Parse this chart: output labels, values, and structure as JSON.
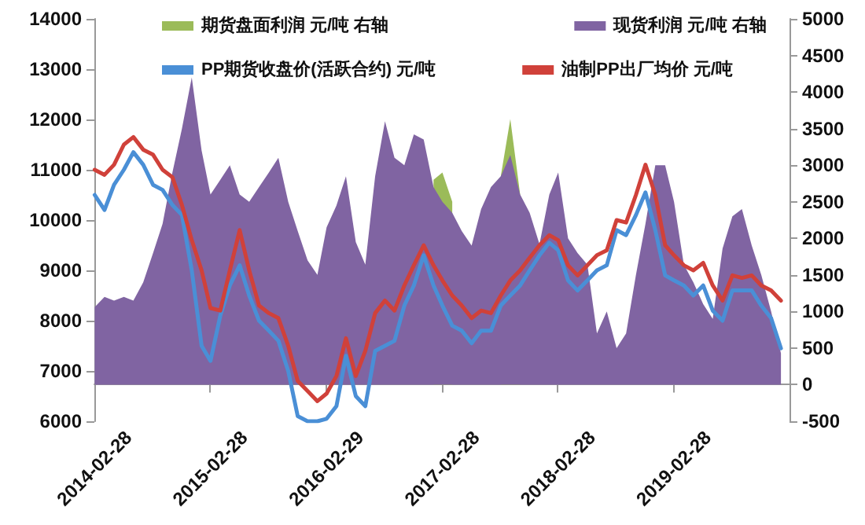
{
  "chart_data": {
    "type": "area",
    "x": [
      "2014-03",
      "2014-04",
      "2014-05",
      "2014-06",
      "2014-07",
      "2014-08",
      "2014-09",
      "2014-10",
      "2014-11",
      "2014-12",
      "2015-01",
      "2015-02",
      "2015-03",
      "2015-04",
      "2015-05",
      "2015-06",
      "2015-07",
      "2015-08",
      "2015-09",
      "2015-10",
      "2015-11",
      "2015-12",
      "2016-01",
      "2016-02",
      "2016-03",
      "2016-04",
      "2016-05",
      "2016-06",
      "2016-07",
      "2016-08",
      "2016-09",
      "2016-10",
      "2016-11",
      "2016-12",
      "2017-01",
      "2017-02",
      "2017-03",
      "2017-04",
      "2017-05",
      "2017-06",
      "2017-07",
      "2017-08",
      "2017-09",
      "2017-10",
      "2017-11",
      "2017-12",
      "2018-01",
      "2018-02",
      "2018-03",
      "2018-04",
      "2018-05",
      "2018-06",
      "2018-07",
      "2018-08",
      "2018-09",
      "2018-10",
      "2018-11",
      "2018-12",
      "2019-01",
      "2019-02",
      "2019-03",
      "2019-04",
      "2019-05",
      "2019-06",
      "2019-07",
      "2019-08",
      "2019-09",
      "2019-10",
      "2019-11",
      "2019-12",
      "2020-01",
      "2020-02"
    ],
    "series": [
      {
        "name": "期货盘面利润 元/吨 右轴",
        "axis": "y2",
        "color": "#9bbb59",
        "values": [
          null,
          null,
          null,
          null,
          null,
          null,
          null,
          null,
          null,
          null,
          null,
          null,
          null,
          null,
          null,
          null,
          null,
          null,
          null,
          null,
          null,
          null,
          null,
          null,
          null,
          null,
          null,
          null,
          null,
          null,
          null,
          null,
          null,
          null,
          null,
          2800,
          2900,
          2500,
          null,
          null,
          null,
          null,
          2850,
          3630,
          2600,
          null,
          null,
          null,
          null,
          null,
          null,
          null,
          null,
          null,
          null,
          null,
          null,
          null,
          null,
          null,
          null,
          null,
          null,
          null,
          null,
          null,
          null,
          null,
          null,
          null,
          null,
          null
        ]
      },
      {
        "name": "现货利润 元/吨 右轴",
        "axis": "y2",
        "color": "#8064a2",
        "values": [
          1060,
          1200,
          1150,
          1200,
          1150,
          1400,
          1800,
          2200,
          2900,
          3500,
          4200,
          3200,
          2600,
          2800,
          3000,
          2600,
          2500,
          2700,
          2900,
          3100,
          2500,
          2100,
          1700,
          1500,
          2150,
          2450,
          2850,
          1950,
          1640,
          2850,
          3600,
          3100,
          3000,
          3420,
          3350,
          2700,
          2500,
          2350,
          2100,
          1900,
          2400,
          2700,
          2850,
          3140,
          2600,
          2350,
          1920,
          2600,
          2900,
          2000,
          1800,
          1640,
          700,
          1000,
          500,
          700,
          1500,
          2200,
          3000,
          3000,
          2500,
          1640,
          1400,
          1100,
          900,
          1860,
          2300,
          2400,
          1900,
          1500,
          1000,
          430
        ]
      },
      {
        "name": "PP期货收盘价(活跃合约) 元/吨",
        "type": "line",
        "color": "#4a8fd6",
        "values": [
          10500,
          10200,
          10700,
          11000,
          11350,
          11100,
          10700,
          10600,
          10300,
          10100,
          9000,
          7500,
          7200,
          8100,
          8700,
          9100,
          8500,
          8000,
          7800,
          7600,
          7000,
          6100,
          6000,
          6000,
          6050,
          6300,
          7300,
          6500,
          6300,
          7400,
          7500,
          7600,
          8300,
          8700,
          9300,
          8700,
          8300,
          7900,
          7800,
          7550,
          7800,
          7800,
          8300,
          8500,
          8700,
          9000,
          9300,
          9550,
          9400,
          8800,
          8600,
          8800,
          9000,
          9100,
          9800,
          9700,
          10100,
          10550,
          9800,
          8900,
          8800,
          8700,
          8500,
          8700,
          8200,
          8000,
          8600,
          8600,
          8600,
          8300,
          8050,
          7450
        ]
      },
      {
        "name": "油制PP出厂均价 元/吨",
        "type": "line",
        "color": "#d0413a",
        "values": [
          11000,
          10900,
          11100,
          11500,
          11650,
          11400,
          11300,
          11000,
          10850,
          10300,
          9600,
          9000,
          8250,
          8200,
          9000,
          9800,
          9000,
          8300,
          8150,
          8050,
          7500,
          6800,
          6600,
          6400,
          6550,
          6900,
          7650,
          6900,
          7400,
          8150,
          8400,
          8200,
          8700,
          9100,
          9500,
          9100,
          8800,
          8500,
          8300,
          8050,
          8200,
          8150,
          8500,
          8800,
          9000,
          9250,
          9500,
          9700,
          9600,
          9100,
          8900,
          9100,
          9300,
          9400,
          10000,
          9950,
          10500,
          11100,
          10500,
          9500,
          9300,
          9100,
          9000,
          9150,
          8700,
          8400,
          8900,
          8850,
          8900,
          8700,
          8600,
          8400
        ]
      }
    ],
    "xlim": [
      "2014-02-28",
      "2020-02-28"
    ],
    "xticks": [
      "2014-02-28",
      "2015-02-28",
      "2016-02-29",
      "2017-02-28",
      "2018-02-28",
      "2019-02-28"
    ],
    "ylim": [
      6000,
      14000
    ],
    "yticks": [
      6000,
      7000,
      8000,
      9000,
      10000,
      11000,
      12000,
      13000,
      14000
    ],
    "y2lim": [
      -500,
      5000
    ],
    "y2ticks": [
      -500,
      0,
      500,
      1000,
      1500,
      2000,
      2500,
      3000,
      3500,
      4000,
      4500,
      5000
    ],
    "legend": "top",
    "grid": false,
    "marker": "none",
    "line_style": "solid"
  }
}
